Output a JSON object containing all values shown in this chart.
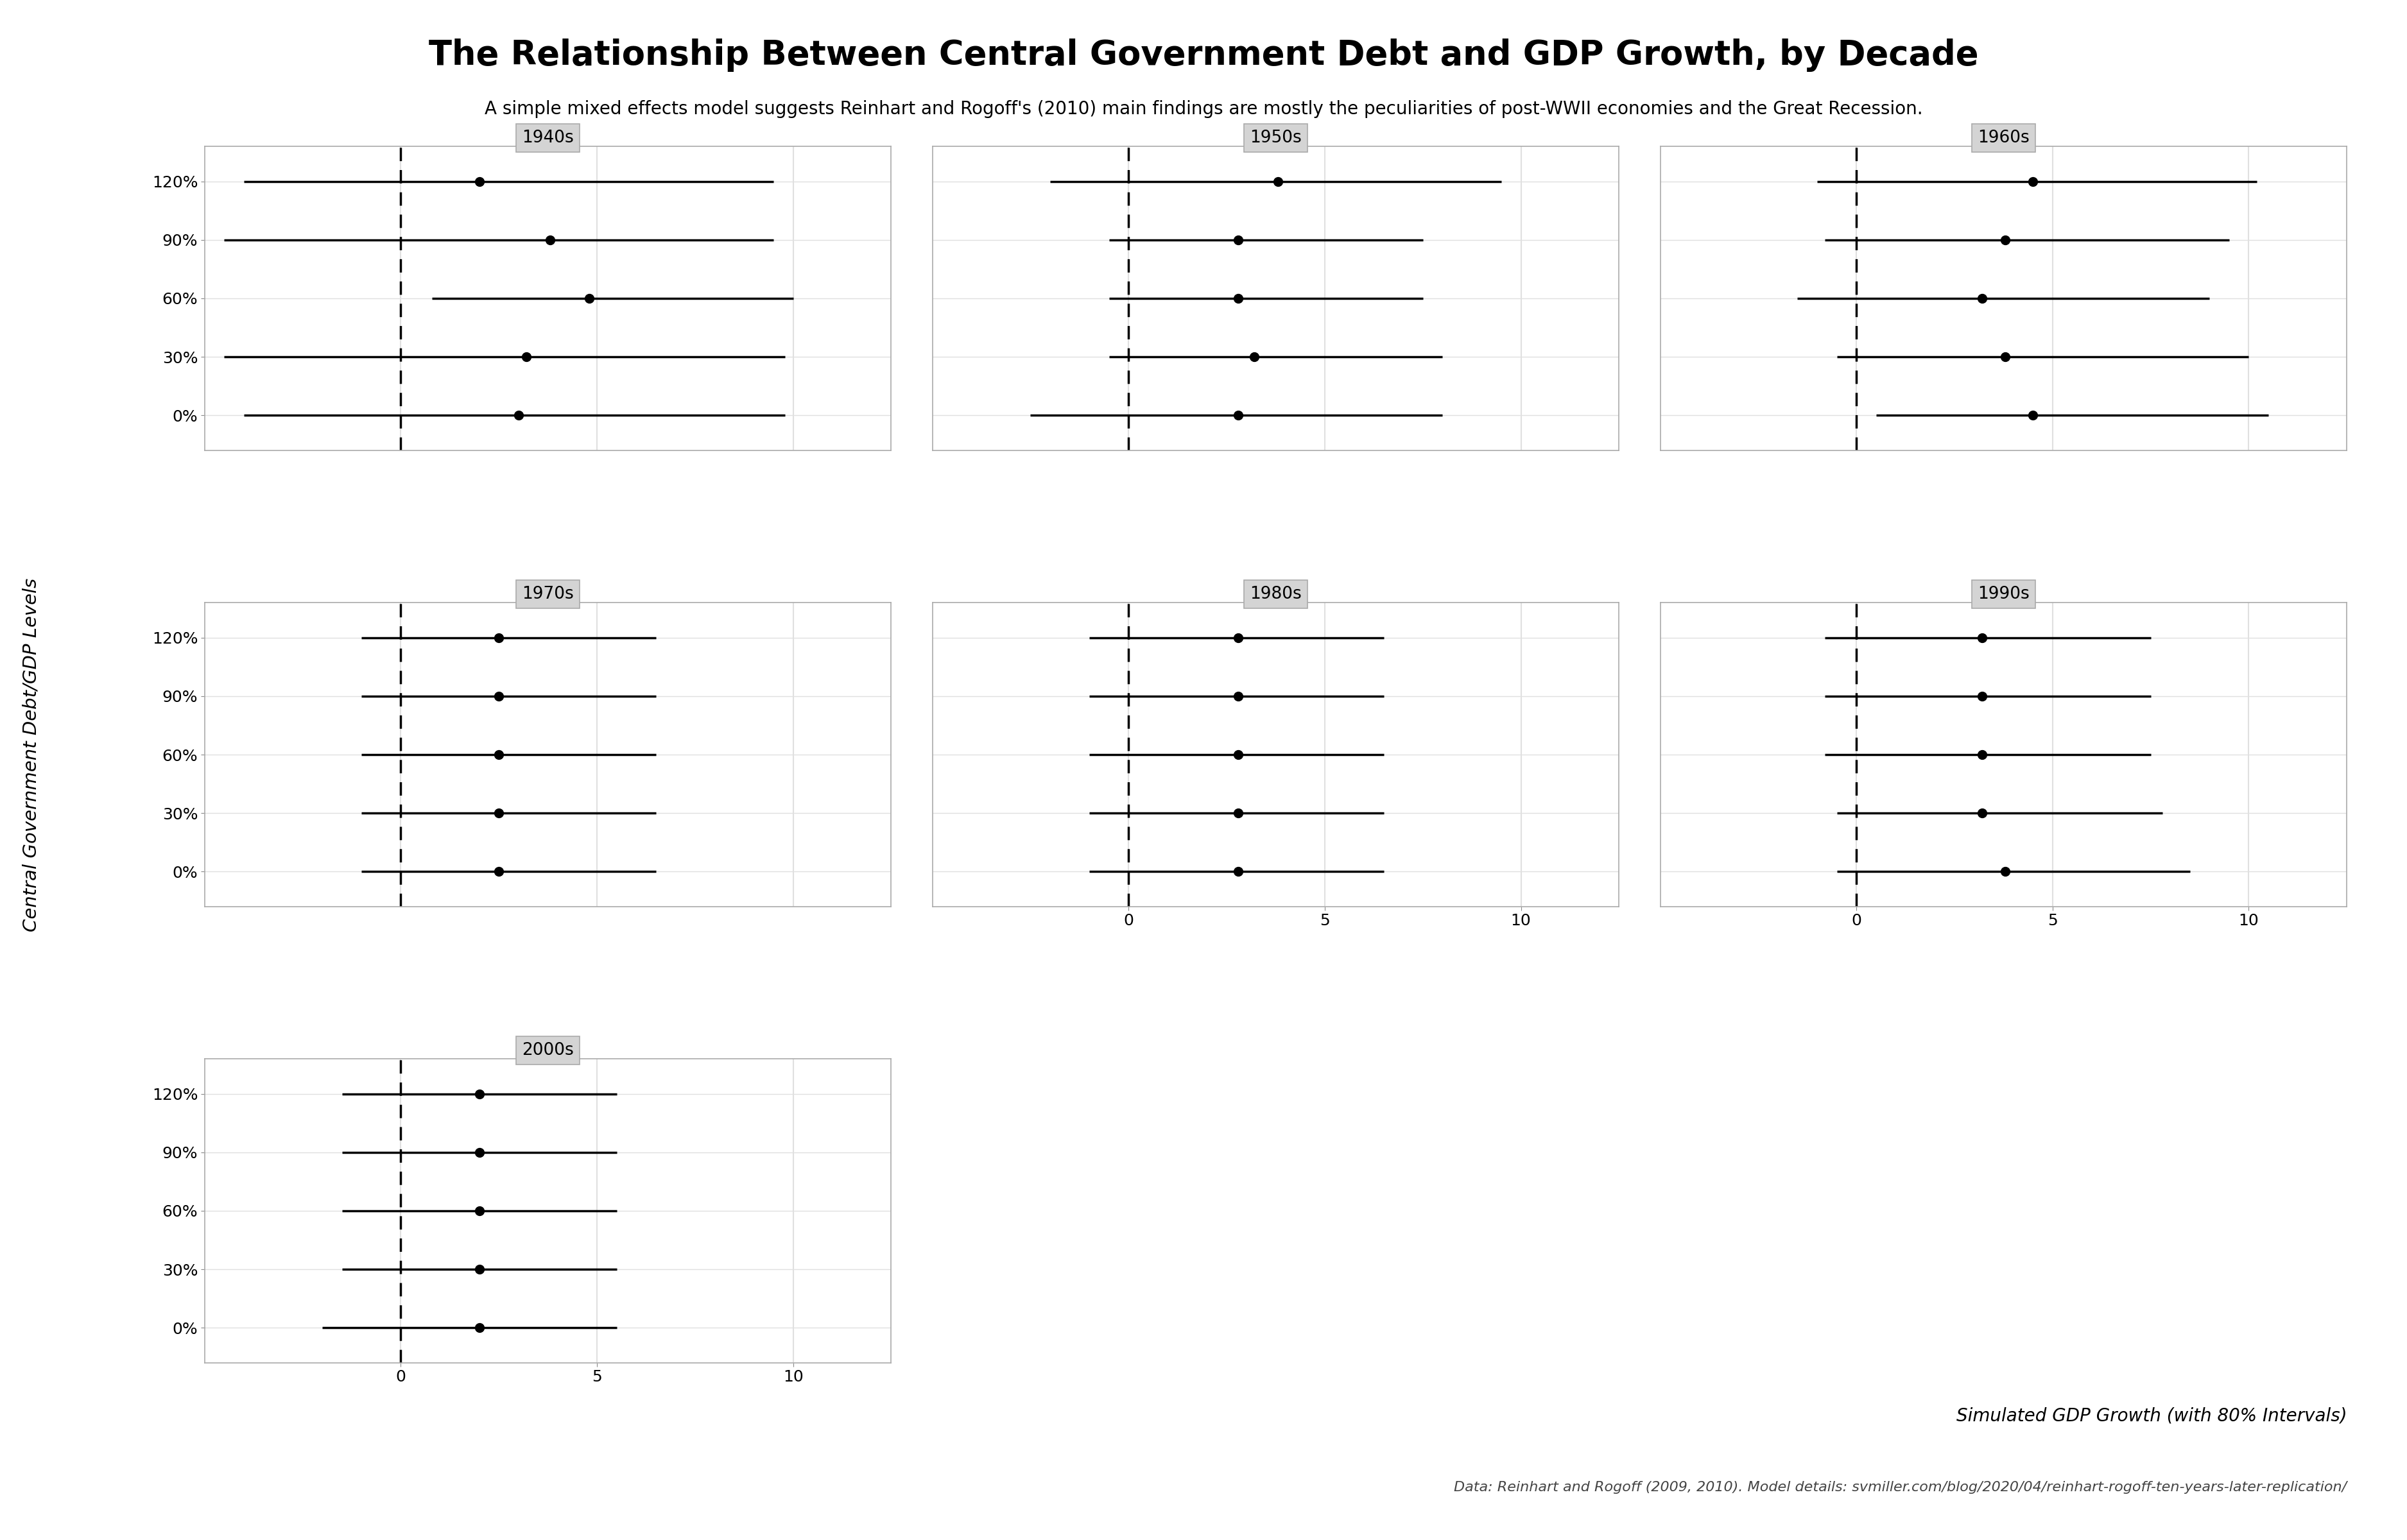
{
  "title": "The Relationship Between Central Government Debt and GDP Growth, by Decade",
  "subtitle": "A simple mixed effects model suggests Reinhart and Rogoff's (2010) main findings are mostly the peculiarities of post-WWII economies and the Great Recession.",
  "ylabel": "Central Government Debt/GDP Levels",
  "xlabel": "Simulated GDP Growth (with 80% Intervals)",
  "footnote": "Data: Reinhart and Rogoff (2009, 2010). Model details: svmiller.com/blog/2020/04/reinhart-rogoff-ten-years-later-replication/",
  "decades": [
    "1940s",
    "1950s",
    "1960s",
    "1970s",
    "1980s",
    "1990s",
    "2000s"
  ],
  "debt_levels": [
    "120%",
    "90%",
    "60%",
    "30%",
    "0%"
  ],
  "debt_y": [
    4,
    3,
    2,
    1,
    0
  ],
  "panel_data": {
    "1940s": {
      "center": [
        2.0,
        3.8,
        4.8,
        3.2,
        3.0
      ],
      "lo": [
        -4.0,
        -4.5,
        0.8,
        -4.5,
        -4.0
      ],
      "hi": [
        9.5,
        9.5,
        10.0,
        9.8,
        9.8
      ]
    },
    "1950s": {
      "center": [
        3.8,
        2.8,
        2.8,
        3.2,
        2.8
      ],
      "lo": [
        -2.0,
        -0.5,
        -0.5,
        -0.5,
        -2.5
      ],
      "hi": [
        9.5,
        7.5,
        7.5,
        8.0,
        8.0
      ]
    },
    "1960s": {
      "center": [
        4.5,
        3.8,
        3.2,
        3.8,
        4.5
      ],
      "lo": [
        -1.0,
        -0.8,
        -1.5,
        -0.5,
        0.5
      ],
      "hi": [
        10.2,
        9.5,
        9.0,
        10.0,
        10.5
      ]
    },
    "1970s": {
      "center": [
        2.5,
        2.5,
        2.5,
        2.5,
        2.5
      ],
      "lo": [
        -1.0,
        -1.0,
        -1.0,
        -1.0,
        -1.0
      ],
      "hi": [
        6.5,
        6.5,
        6.5,
        6.5,
        6.5
      ]
    },
    "1980s": {
      "center": [
        2.8,
        2.8,
        2.8,
        2.8,
        2.8
      ],
      "lo": [
        -1.0,
        -1.0,
        -1.0,
        -1.0,
        -1.0
      ],
      "hi": [
        6.5,
        6.5,
        6.5,
        6.5,
        6.5
      ]
    },
    "1990s": {
      "center": [
        3.2,
        3.2,
        3.2,
        3.2,
        3.8
      ],
      "lo": [
        -0.8,
        -0.8,
        -0.8,
        -0.5,
        -0.5
      ],
      "hi": [
        7.5,
        7.5,
        7.5,
        7.8,
        8.5
      ]
    },
    "2000s": {
      "center": [
        2.0,
        2.0,
        2.0,
        2.0,
        2.0
      ],
      "lo": [
        -1.5,
        -1.5,
        -1.5,
        -1.5,
        -2.0
      ],
      "hi": [
        5.5,
        5.5,
        5.5,
        5.5,
        5.5
      ]
    }
  },
  "xlim": [
    -5,
    12.5
  ],
  "xticks": [
    0,
    5,
    10
  ],
  "background_color": "#ffffff",
  "strip_bg": "#d4d4d4",
  "strip_border": "#aaaaaa",
  "grid_color": "#e0e0e0",
  "panel_border": "#aaaaaa"
}
